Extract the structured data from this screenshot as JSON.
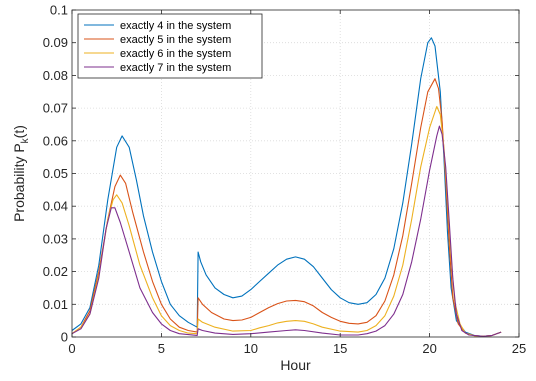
{
  "chart_data": {
    "type": "line",
    "xlabel": "Hour",
    "ylabel": {
      "main": "Probability P",
      "sub": "k",
      "rest": "(t)"
    },
    "xlim": [
      0,
      25
    ],
    "ylim": [
      0,
      0.1
    ],
    "xticks": [
      "0",
      "5",
      "10",
      "15",
      "20",
      "25"
    ],
    "yticks": [
      "0",
      "0.01",
      "0.02",
      "0.03",
      "0.04",
      "0.05",
      "0.06",
      "0.07",
      "0.08",
      "0.09",
      "0.1"
    ],
    "grid": true,
    "legend": "top-left",
    "series": [
      {
        "name": "exactly 4 in the system",
        "color": "#0072BD",
        "points": [
          [
            0,
            0.002
          ],
          [
            0.5,
            0.004
          ],
          [
            1,
            0.009
          ],
          [
            1.5,
            0.022
          ],
          [
            2,
            0.042
          ],
          [
            2.5,
            0.058
          ],
          [
            2.8,
            0.0615
          ],
          [
            3.2,
            0.058
          ],
          [
            3.6,
            0.048
          ],
          [
            4,
            0.037
          ],
          [
            4.5,
            0.026
          ],
          [
            5,
            0.017
          ],
          [
            5.5,
            0.01
          ],
          [
            6,
            0.0065
          ],
          [
            6.5,
            0.0045
          ],
          [
            7.0,
            0.003
          ],
          [
            7.05,
            0.026
          ],
          [
            7.2,
            0.023
          ],
          [
            7.5,
            0.019
          ],
          [
            8,
            0.015
          ],
          [
            8.5,
            0.013
          ],
          [
            9,
            0.012
          ],
          [
            9.5,
            0.0125
          ],
          [
            10,
            0.0145
          ],
          [
            10.5,
            0.017
          ],
          [
            11,
            0.0195
          ],
          [
            11.5,
            0.022
          ],
          [
            12,
            0.0238
          ],
          [
            12.5,
            0.0245
          ],
          [
            13,
            0.0238
          ],
          [
            13.5,
            0.0215
          ],
          [
            14,
            0.018
          ],
          [
            14.5,
            0.0145
          ],
          [
            15,
            0.012
          ],
          [
            15.5,
            0.0105
          ],
          [
            16,
            0.01
          ],
          [
            16.5,
            0.0105
          ],
          [
            17,
            0.013
          ],
          [
            17.5,
            0.018
          ],
          [
            18,
            0.027
          ],
          [
            18.5,
            0.041
          ],
          [
            19,
            0.059
          ],
          [
            19.5,
            0.079
          ],
          [
            19.9,
            0.09
          ],
          [
            20.1,
            0.0915
          ],
          [
            20.3,
            0.089
          ],
          [
            20.6,
            0.075
          ],
          [
            20.8,
            0.055
          ],
          [
            21.0,
            0.032
          ],
          [
            21.2,
            0.015
          ],
          [
            21.5,
            0.005
          ],
          [
            22,
            0.0015
          ],
          [
            22.5,
            0.0005
          ],
          [
            23,
            0.0002
          ],
          [
            23.5,
            0.0005
          ],
          [
            24,
            0.0015
          ]
        ]
      },
      {
        "name": "exactly 5 in the system",
        "color": "#D95319",
        "points": [
          [
            0,
            0.001
          ],
          [
            0.5,
            0.003
          ],
          [
            1,
            0.008
          ],
          [
            1.5,
            0.02
          ],
          [
            2,
            0.036
          ],
          [
            2.4,
            0.046
          ],
          [
            2.7,
            0.0495
          ],
          [
            3.0,
            0.047
          ],
          [
            3.4,
            0.038
          ],
          [
            4,
            0.026
          ],
          [
            4.5,
            0.017
          ],
          [
            5,
            0.01
          ],
          [
            5.5,
            0.0055
          ],
          [
            6,
            0.003
          ],
          [
            6.5,
            0.002
          ],
          [
            7.0,
            0.0015
          ],
          [
            7.05,
            0.012
          ],
          [
            7.3,
            0.01
          ],
          [
            7.8,
            0.0075
          ],
          [
            8.5,
            0.0055
          ],
          [
            9,
            0.005
          ],
          [
            9.5,
            0.0052
          ],
          [
            10,
            0.006
          ],
          [
            10.5,
            0.0075
          ],
          [
            11,
            0.009
          ],
          [
            11.5,
            0.0102
          ],
          [
            12,
            0.011
          ],
          [
            12.5,
            0.0112
          ],
          [
            13,
            0.0108
          ],
          [
            13.5,
            0.0095
          ],
          [
            14,
            0.0075
          ],
          [
            14.5,
            0.006
          ],
          [
            15,
            0.0048
          ],
          [
            15.5,
            0.0042
          ],
          [
            16,
            0.004
          ],
          [
            16.5,
            0.0045
          ],
          [
            17,
            0.0065
          ],
          [
            17.5,
            0.011
          ],
          [
            18,
            0.019
          ],
          [
            18.5,
            0.031
          ],
          [
            19,
            0.047
          ],
          [
            19.5,
            0.064
          ],
          [
            19.9,
            0.075
          ],
          [
            20.3,
            0.079
          ],
          [
            20.5,
            0.076
          ],
          [
            20.7,
            0.066
          ],
          [
            20.9,
            0.048
          ],
          [
            21.1,
            0.028
          ],
          [
            21.3,
            0.012
          ],
          [
            21.6,
            0.004
          ],
          [
            22,
            0.0012
          ],
          [
            22.5,
            0.0004
          ],
          [
            23,
            0.0002
          ],
          [
            23.5,
            0.0005
          ],
          [
            24,
            0.0015
          ]
        ]
      },
      {
        "name": "exactly 6 in the system",
        "color": "#EDB120",
        "points": [
          [
            0,
            0.001
          ],
          [
            0.5,
            0.003
          ],
          [
            1,
            0.007
          ],
          [
            1.5,
            0.019
          ],
          [
            2,
            0.036
          ],
          [
            2.3,
            0.042
          ],
          [
            2.5,
            0.0435
          ],
          [
            2.8,
            0.041
          ],
          [
            3.2,
            0.034
          ],
          [
            3.8,
            0.022
          ],
          [
            4.5,
            0.012
          ],
          [
            5,
            0.0065
          ],
          [
            5.5,
            0.0035
          ],
          [
            6,
            0.002
          ],
          [
            6.5,
            0.0012
          ],
          [
            7.0,
            0.001
          ],
          [
            7.05,
            0.0055
          ],
          [
            7.3,
            0.0045
          ],
          [
            8,
            0.003
          ],
          [
            9,
            0.0018
          ],
          [
            10,
            0.002
          ],
          [
            10.5,
            0.0028
          ],
          [
            11,
            0.0035
          ],
          [
            11.5,
            0.0043
          ],
          [
            12,
            0.0048
          ],
          [
            12.5,
            0.005
          ],
          [
            13,
            0.0048
          ],
          [
            13.5,
            0.004
          ],
          [
            14,
            0.003
          ],
          [
            15,
            0.0018
          ],
          [
            16,
            0.0015
          ],
          [
            16.5,
            0.002
          ],
          [
            17,
            0.0035
          ],
          [
            17.5,
            0.0065
          ],
          [
            18,
            0.0125
          ],
          [
            18.5,
            0.022
          ],
          [
            19,
            0.036
          ],
          [
            19.5,
            0.052
          ],
          [
            20,
            0.064
          ],
          [
            20.4,
            0.0705
          ],
          [
            20.6,
            0.068
          ],
          [
            20.8,
            0.058
          ],
          [
            21.0,
            0.042
          ],
          [
            21.2,
            0.024
          ],
          [
            21.4,
            0.011
          ],
          [
            21.7,
            0.004
          ],
          [
            22,
            0.0012
          ],
          [
            22.5,
            0.0004
          ],
          [
            23,
            0.0002
          ],
          [
            23.5,
            0.0005
          ],
          [
            24,
            0.0015
          ]
        ]
      },
      {
        "name": "exactly 7 in the system",
        "color": "#7E2F8E",
        "points": [
          [
            0,
            0.001
          ],
          [
            0.5,
            0.0025
          ],
          [
            1,
            0.007
          ],
          [
            1.5,
            0.018
          ],
          [
            1.9,
            0.033
          ],
          [
            2.2,
            0.0395
          ],
          [
            2.4,
            0.0395
          ],
          [
            2.7,
            0.035
          ],
          [
            3.2,
            0.026
          ],
          [
            3.8,
            0.015
          ],
          [
            4.5,
            0.0075
          ],
          [
            5,
            0.004
          ],
          [
            5.5,
            0.002
          ],
          [
            6,
            0.001
          ],
          [
            7.0,
            0.0005
          ],
          [
            7.05,
            0.0025
          ],
          [
            7.3,
            0.002
          ],
          [
            8,
            0.0012
          ],
          [
            9,
            0.0008
          ],
          [
            10,
            0.001
          ],
          [
            11,
            0.0015
          ],
          [
            12,
            0.002
          ],
          [
            12.5,
            0.0022
          ],
          [
            13,
            0.002
          ],
          [
            14,
            0.0012
          ],
          [
            15,
            0.0006
          ],
          [
            16,
            0.0006
          ],
          [
            16.5,
            0.001
          ],
          [
            17,
            0.0018
          ],
          [
            17.5,
            0.0035
          ],
          [
            18,
            0.007
          ],
          [
            18.5,
            0.013
          ],
          [
            19,
            0.023
          ],
          [
            19.5,
            0.036
          ],
          [
            20,
            0.051
          ],
          [
            20.4,
            0.0615
          ],
          [
            20.55,
            0.0645
          ],
          [
            20.7,
            0.062
          ],
          [
            20.9,
            0.052
          ],
          [
            21.1,
            0.035
          ],
          [
            21.3,
            0.018
          ],
          [
            21.5,
            0.007
          ],
          [
            21.8,
            0.002
          ],
          [
            22.2,
            0.0006
          ],
          [
            23,
            0.0002
          ],
          [
            23.5,
            0.0005
          ],
          [
            24,
            0.0015
          ]
        ]
      }
    ]
  }
}
